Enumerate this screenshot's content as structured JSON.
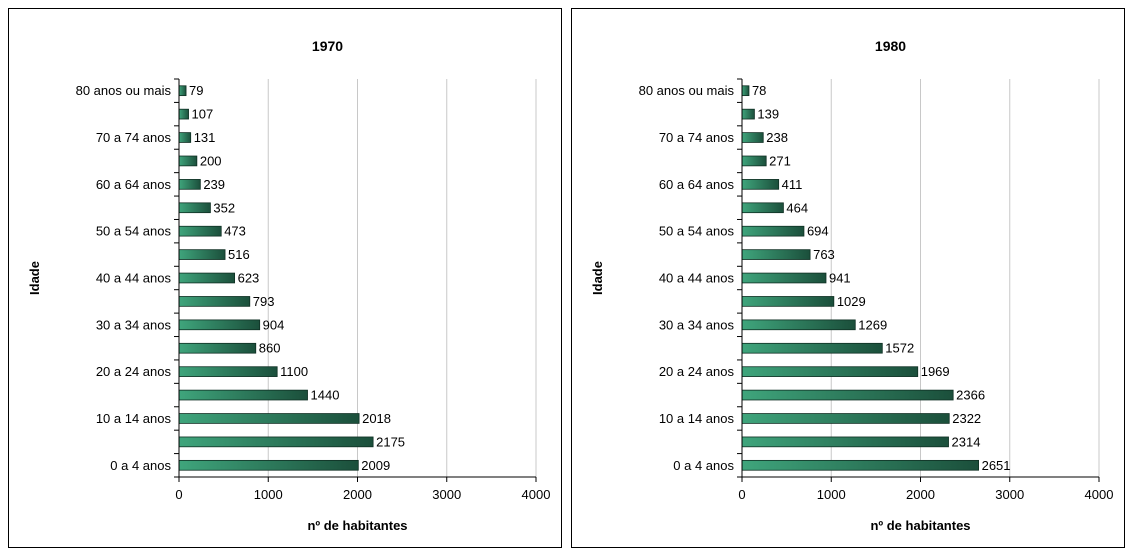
{
  "chart_data": [
    {
      "type": "bar",
      "orientation": "horizontal",
      "title": "1970",
      "xlabel": "nº de habitantes",
      "ylabel": "Idade",
      "xlim": [
        0,
        4000
      ],
      "xticks": [
        "0",
        "1000",
        "2000",
        "3000",
        "4000"
      ],
      "grid": "vertical",
      "categories": [
        "0 a 4 anos",
        "",
        "10 a 14 anos",
        "",
        "20 a 24 anos",
        "",
        "30 a 34 anos",
        "",
        "40 a 44 anos",
        "",
        "50 a 54 anos",
        "",
        "60 a 64 anos",
        "",
        "70 a 74 anos",
        "",
        "80 anos ou mais"
      ],
      "values": [
        2009,
        2175,
        2018,
        1440,
        1100,
        860,
        904,
        793,
        623,
        516,
        473,
        352,
        239,
        200,
        131,
        107,
        79
      ],
      "colors": {
        "bar_light": "#3fa57c",
        "bar_dark": "#1b4f3b"
      }
    },
    {
      "type": "bar",
      "orientation": "horizontal",
      "title": "1980",
      "xlabel": "nº de habitantes",
      "ylabel": "Idade",
      "xlim": [
        0,
        4000
      ],
      "xticks": [
        "0",
        "1000",
        "2000",
        "3000",
        "4000"
      ],
      "grid": "vertical",
      "categories": [
        "0 a 4 anos",
        "",
        "10 a 14 anos",
        "",
        "20 a 24 anos",
        "",
        "30 a 34 anos",
        "",
        "40 a 44 anos",
        "",
        "50 a 54 anos",
        "",
        "60 a 64 anos",
        "",
        "70 a 74 anos",
        "",
        "80 anos ou mais"
      ],
      "values": [
        2651,
        2314,
        2322,
        2366,
        1969,
        1572,
        1269,
        1029,
        941,
        763,
        694,
        464,
        411,
        271,
        238,
        139,
        78
      ],
      "colors": {
        "bar_light": "#3fa57c",
        "bar_dark": "#1b4f3b"
      }
    }
  ]
}
